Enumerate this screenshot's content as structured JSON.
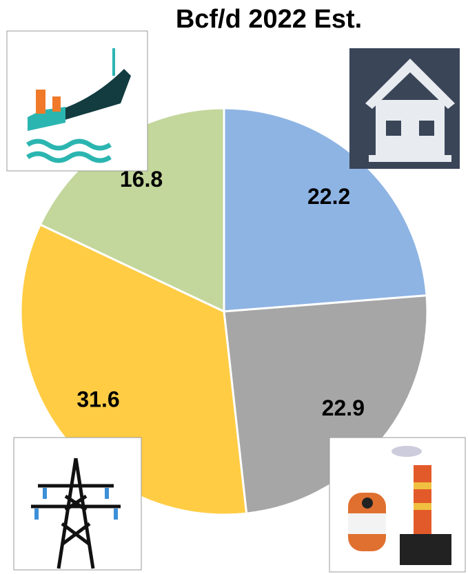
{
  "chart_data": {
    "type": "pie",
    "title": "Bcf/d 2022 Est.",
    "values": [
      22.2,
      22.9,
      31.6,
      16.8
    ],
    "colors": [
      "#8eb4e3",
      "#a6a6a6",
      "#ffcc44",
      "#c3d69b"
    ]
  }
}
